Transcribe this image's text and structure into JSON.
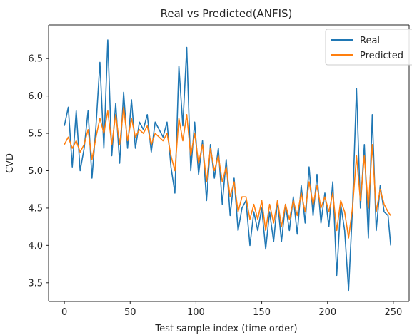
{
  "chart_data": {
    "type": "line",
    "title": "Real vs Predicted(ANFIS)",
    "xlabel": "Test sample index (time order)",
    "ylabel": "CVD",
    "xlim": [
      -12,
      262
    ],
    "ylim": [
      3.25,
      6.95
    ],
    "xticks": [
      0,
      50,
      100,
      150,
      200,
      250
    ],
    "yticks": [
      3.5,
      4.0,
      4.5,
      5.0,
      5.5,
      6.0,
      6.5
    ],
    "xtick_labels": [
      "0",
      "50",
      "100",
      "150",
      "200",
      "250"
    ],
    "ytick_labels": [
      "3.5",
      "4.0",
      "4.5",
      "5.0",
      "5.5",
      "6.0",
      "6.5"
    ],
    "grid": false,
    "legend_position": "top-right",
    "x": [
      0,
      3,
      6,
      9,
      12,
      15,
      18,
      21,
      24,
      27,
      30,
      33,
      36,
      39,
      42,
      45,
      48,
      51,
      54,
      57,
      60,
      63,
      66,
      69,
      72,
      75,
      78,
      81,
      84,
      87,
      90,
      93,
      96,
      99,
      102,
      105,
      108,
      111,
      114,
      117,
      120,
      123,
      126,
      129,
      132,
      135,
      138,
      141,
      144,
      147,
      150,
      153,
      156,
      159,
      162,
      165,
      168,
      171,
      174,
      177,
      180,
      183,
      186,
      189,
      192,
      195,
      198,
      201,
      204,
      207,
      210,
      213,
      216,
      219,
      222,
      225,
      228,
      231,
      234,
      237,
      240,
      243,
      246,
      248
    ],
    "series": [
      {
        "name": "Real",
        "color": "#1f77b4",
        "values": [
          5.6,
          5.85,
          5.05,
          5.8,
          5.0,
          5.3,
          5.8,
          4.9,
          5.6,
          6.45,
          5.3,
          6.75,
          5.2,
          5.9,
          5.1,
          6.05,
          5.3,
          5.95,
          5.3,
          5.65,
          5.55,
          5.75,
          5.25,
          5.65,
          5.55,
          5.45,
          5.65,
          5.05,
          4.7,
          6.4,
          5.6,
          6.65,
          5.0,
          5.65,
          4.95,
          5.4,
          4.6,
          5.35,
          4.9,
          5.3,
          4.55,
          5.15,
          4.4,
          4.9,
          4.2,
          4.5,
          4.6,
          4.0,
          4.45,
          4.2,
          4.5,
          3.95,
          4.45,
          4.05,
          4.6,
          4.05,
          4.55,
          4.2,
          4.65,
          4.15,
          4.8,
          4.3,
          5.05,
          4.4,
          4.95,
          4.3,
          4.7,
          4.25,
          4.85,
          3.6,
          4.55,
          4.2,
          3.4,
          4.5,
          6.1,
          4.5,
          5.35,
          4.1,
          5.75,
          4.2,
          4.8,
          4.45,
          4.4,
          4.0
        ]
      },
      {
        "name": "Predicted",
        "color": "#ff7f0e",
        "values": [
          5.35,
          5.45,
          5.3,
          5.4,
          5.25,
          5.35,
          5.55,
          5.15,
          5.45,
          5.7,
          5.5,
          5.8,
          5.35,
          5.75,
          5.35,
          5.85,
          5.4,
          5.7,
          5.45,
          5.55,
          5.5,
          5.6,
          5.35,
          5.5,
          5.45,
          5.4,
          5.5,
          5.2,
          5.0,
          5.7,
          5.4,
          5.75,
          5.2,
          5.5,
          5.1,
          5.35,
          4.85,
          5.3,
          5.0,
          5.2,
          4.85,
          5.05,
          4.65,
          4.85,
          4.45,
          4.65,
          4.65,
          4.35,
          4.55,
          4.35,
          4.6,
          4.2,
          4.55,
          4.3,
          4.6,
          4.25,
          4.55,
          4.35,
          4.6,
          4.4,
          4.7,
          4.45,
          4.85,
          4.55,
          4.8,
          4.5,
          4.65,
          4.45,
          4.7,
          4.2,
          4.6,
          4.45,
          4.1,
          4.5,
          5.2,
          4.6,
          5.2,
          4.5,
          5.35,
          4.45,
          4.75,
          4.55,
          4.45,
          4.4
        ]
      }
    ]
  }
}
